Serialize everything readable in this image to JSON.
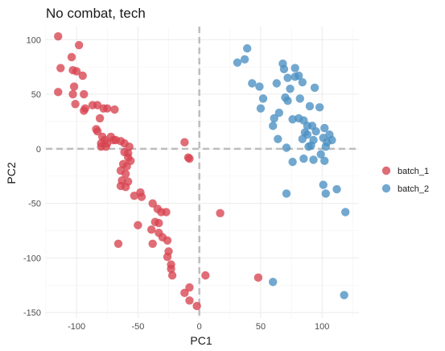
{
  "chart_data": {
    "type": "scatter",
    "title": "No combat, tech",
    "xlabel": "PC1",
    "ylabel": "PC2",
    "xlim": [
      -125,
      130
    ],
    "ylim": [
      -155,
      112
    ],
    "x_ticks": [
      -100,
      -50,
      0,
      50,
      100
    ],
    "y_ticks": [
      -150,
      -100,
      -50,
      0,
      50,
      100
    ],
    "x_tick_labels": [
      "-100",
      "-50",
      "0",
      "50",
      "100"
    ],
    "y_tick_labels": [
      "-150",
      "-100",
      "-50",
      "0",
      "50",
      "100"
    ],
    "reference_lines": {
      "x": 0,
      "y": 0
    },
    "grid": true,
    "legend_position": "right",
    "series": [
      {
        "name": "batch_1",
        "color": "#D7424F",
        "points": [
          [
            -115,
            103
          ],
          [
            -98,
            95
          ],
          [
            -113,
            74
          ],
          [
            -104,
            84
          ],
          [
            -103,
            72
          ],
          [
            -100,
            71
          ],
          [
            -95,
            67
          ],
          [
            -115,
            52
          ],
          [
            -102,
            57
          ],
          [
            -103,
            50
          ],
          [
            -94,
            50
          ],
          [
            -101,
            41
          ],
          [
            -93,
            37
          ],
          [
            -87,
            40
          ],
          [
            -94,
            35
          ],
          [
            -83,
            40
          ],
          [
            -78,
            37
          ],
          [
            -75,
            37
          ],
          [
            -69,
            36
          ],
          [
            -81,
            28
          ],
          [
            -84,
            18
          ],
          [
            -83,
            16
          ],
          [
            -79,
            11
          ],
          [
            -72,
            11
          ],
          [
            -77,
            8
          ],
          [
            -70,
            8
          ],
          [
            -68,
            8
          ],
          [
            -64,
            7
          ],
          [
            -80,
            5
          ],
          [
            -75,
            5
          ],
          [
            -61,
            5
          ],
          [
            -80,
            2
          ],
          [
            -76,
            2
          ],
          [
            -57,
            2
          ],
          [
            -12,
            6
          ],
          [
            -61,
            -3
          ],
          [
            -58,
            -4
          ],
          [
            -58,
            -8
          ],
          [
            -56,
            -11
          ],
          [
            -9,
            -8
          ],
          [
            -8,
            -9
          ],
          [
            -62,
            -14
          ],
          [
            -59,
            -16
          ],
          [
            -64,
            -20
          ],
          [
            -60,
            -23
          ],
          [
            -63,
            -29
          ],
          [
            -58,
            -30
          ],
          [
            -64,
            -34
          ],
          [
            -60,
            -35
          ],
          [
            -48,
            -40
          ],
          [
            -53,
            -43
          ],
          [
            -47,
            -44
          ],
          [
            -38,
            -50
          ],
          [
            -34,
            -55
          ],
          [
            -31,
            -58
          ],
          [
            -27,
            -58
          ],
          [
            -36,
            -67
          ],
          [
            -33,
            -68
          ],
          [
            -50,
            -70
          ],
          [
            -39,
            -74
          ],
          [
            -33,
            -77
          ],
          [
            -30,
            -81
          ],
          [
            -26,
            -84
          ],
          [
            17,
            -59
          ],
          [
            -66,
            -87
          ],
          [
            -38,
            -87
          ],
          [
            -25,
            -94
          ],
          [
            -26,
            -99
          ],
          [
            -23,
            -106
          ],
          [
            -23,
            -110
          ],
          [
            -22,
            -116
          ],
          [
            5,
            -116
          ],
          [
            -8,
            -127
          ],
          [
            -12,
            -132
          ],
          [
            -8,
            -139
          ],
          [
            -2,
            -144
          ],
          [
            48,
            -118
          ]
        ]
      },
      {
        "name": "batch_2",
        "color": "#4A90C2",
        "points": [
          [
            39,
            92
          ],
          [
            31,
            79
          ],
          [
            37,
            82
          ],
          [
            68,
            78
          ],
          [
            78,
            74
          ],
          [
            69,
            73
          ],
          [
            81,
            67
          ],
          [
            78,
            66
          ],
          [
            72,
            65
          ],
          [
            43,
            60
          ],
          [
            49,
            57
          ],
          [
            63,
            60
          ],
          [
            84,
            61
          ],
          [
            94,
            56
          ],
          [
            74,
            55
          ],
          [
            52,
            46
          ],
          [
            70,
            47
          ],
          [
            82,
            46
          ],
          [
            72,
            44
          ],
          [
            98,
            38
          ],
          [
            90,
            39
          ],
          [
            50,
            37
          ],
          [
            65,
            33
          ],
          [
            81,
            28
          ],
          [
            76,
            27
          ],
          [
            85,
            26
          ],
          [
            61,
            28
          ],
          [
            60,
            21
          ],
          [
            88,
            21
          ],
          [
            92,
            21
          ],
          [
            102,
            19
          ],
          [
            95,
            16
          ],
          [
            86,
            15
          ],
          [
            88,
            13
          ],
          [
            106,
            13
          ],
          [
            84,
            9
          ],
          [
            64,
            9
          ],
          [
            101,
            10
          ],
          [
            108,
            8
          ],
          [
            93,
            8
          ],
          [
            104,
            6
          ],
          [
            91,
            3
          ],
          [
            89,
            2
          ],
          [
            103,
            2
          ],
          [
            71,
            1
          ],
          [
            99,
            -5
          ],
          [
            85,
            -9
          ],
          [
            93,
            -10
          ],
          [
            102,
            -11
          ],
          [
            76,
            -12
          ],
          [
            101,
            -33
          ],
          [
            112,
            -37
          ],
          [
            103,
            -41
          ],
          [
            71,
            -41
          ],
          [
            119,
            -58
          ],
          [
            60,
            -122
          ],
          [
            118,
            -134
          ]
        ]
      }
    ]
  }
}
